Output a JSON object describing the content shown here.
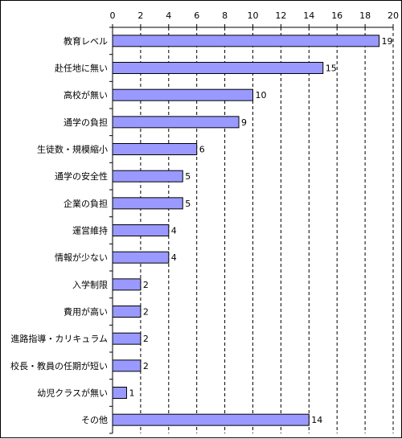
{
  "chart_data": {
    "type": "bar",
    "orientation": "horizontal",
    "categories": [
      "教育レベル",
      "赴任地に無い",
      "高校が無い",
      "通学の負担",
      "生徒数・規模縮小",
      "通学の安全性",
      "企業の負担",
      "運営維持",
      "情報が少ない",
      "入学制限",
      "費用が高い",
      "進路指導・カリキュラム",
      "校長・教員の任期が短い",
      "幼児クラスが無い",
      "その他"
    ],
    "values": [
      19,
      15,
      10,
      9,
      6,
      5,
      5,
      4,
      4,
      2,
      2,
      2,
      2,
      1,
      14
    ],
    "value_labels": [
      "19",
      "15",
      "10",
      "9",
      "6",
      "5",
      "5",
      "4",
      "4",
      "2",
      "2",
      "2",
      "2",
      "1",
      "14"
    ],
    "x_ticks": [
      "0",
      "2",
      "4",
      "6",
      "8",
      "10",
      "12",
      "14",
      "16",
      "18",
      "20"
    ],
    "xlim": [
      0,
      20
    ],
    "x_axis_position": "top",
    "grid": "vertical dashed",
    "bar_color": "#9999ff",
    "bar_border_color": "#000000",
    "legend": "none",
    "title": "",
    "xlabel": "",
    "ylabel": ""
  }
}
